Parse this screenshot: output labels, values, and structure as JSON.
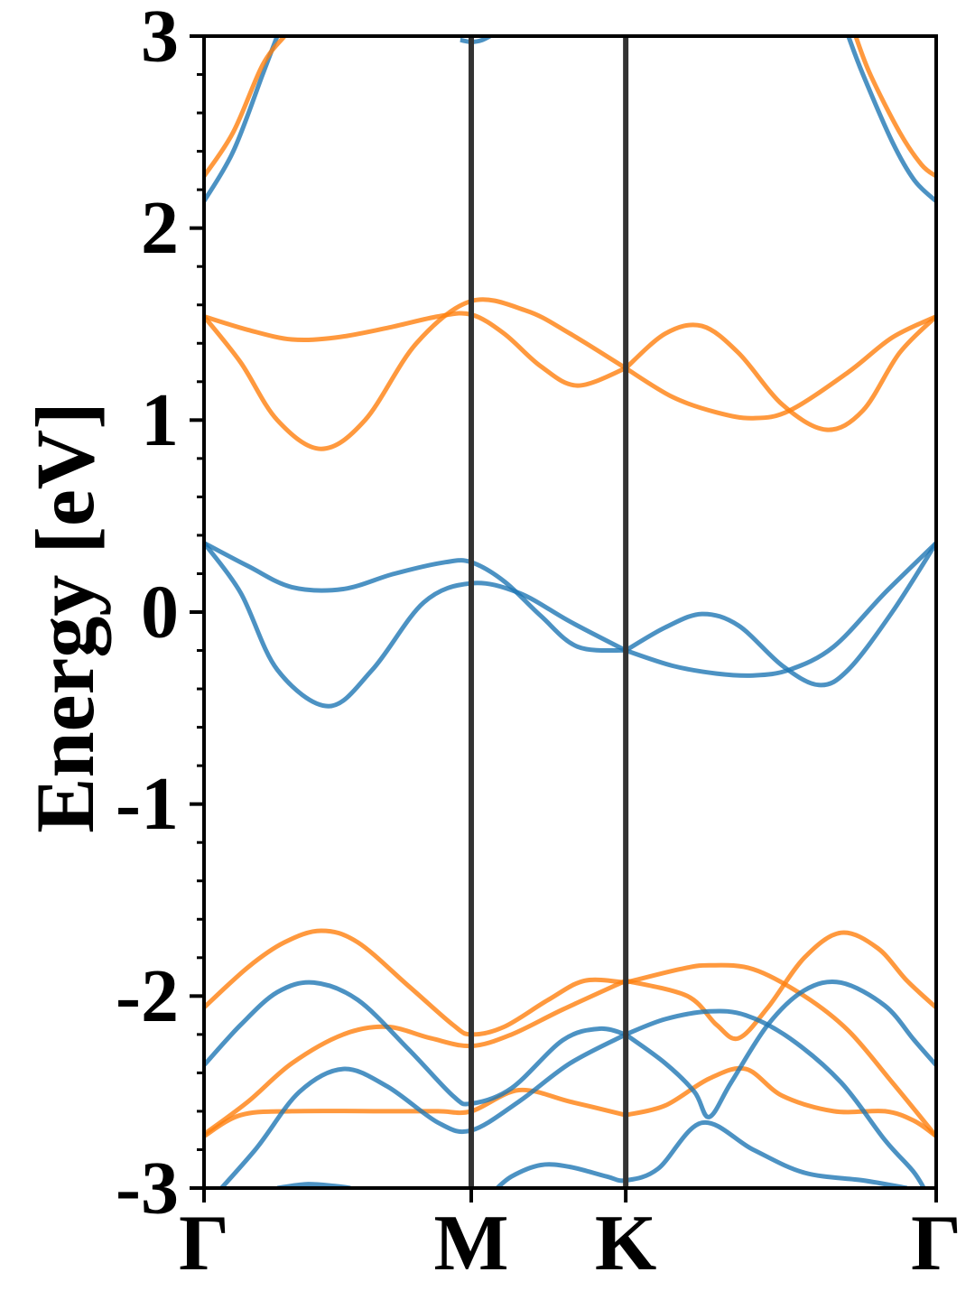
{
  "chart_data": {
    "type": "line",
    "title": "",
    "xlabel": "",
    "ylabel": "Energy [eV]",
    "ylim": [
      -3,
      3
    ],
    "xlim": [
      0,
      1
    ],
    "grid": false,
    "legend": "none",
    "y_major_ticks": [
      -3,
      -2,
      -1,
      0,
      1,
      2,
      3
    ],
    "y_tick_labels": [
      "-3",
      "-2",
      "-1",
      "0",
      "1",
      "2",
      "3"
    ],
    "y_minor_step": 0.2,
    "k_points": [
      {
        "label": "Γ",
        "x": 0.0
      },
      {
        "label": "M",
        "x": 0.365
      },
      {
        "label": "K",
        "x": 0.576
      },
      {
        "label": "Γ",
        "x": 1.0
      }
    ],
    "colors": {
      "blue": "#1f77b4",
      "orange": "#ff7f0e",
      "kline": "#333333"
    },
    "series": [
      {
        "color": "blue",
        "points": [
          [
            0,
            2.14
          ],
          [
            0.04,
            2.4
          ],
          [
            0.08,
            2.8
          ],
          [
            0.1,
            3.0
          ]
        ]
      },
      {
        "color": "blue",
        "points": [
          [
            0.35,
            2.98
          ],
          [
            0.365,
            2.97
          ],
          [
            0.38,
            2.98
          ],
          [
            0.4,
            3.02
          ]
        ]
      },
      {
        "color": "blue",
        "points": [
          [
            0.88,
            3.0
          ],
          [
            0.9,
            2.8
          ],
          [
            0.94,
            2.45
          ],
          [
            0.97,
            2.25
          ],
          [
            1.0,
            2.14
          ]
        ]
      },
      {
        "color": "orange",
        "points": [
          [
            0,
            2.27
          ],
          [
            0.04,
            2.5
          ],
          [
            0.08,
            2.85
          ],
          [
            0.11,
            3.0
          ]
        ]
      },
      {
        "color": "orange",
        "points": [
          [
            0.89,
            3.0
          ],
          [
            0.91,
            2.8
          ],
          [
            0.95,
            2.5
          ],
          [
            0.98,
            2.33
          ],
          [
            1.0,
            2.27
          ]
        ]
      },
      {
        "color": "orange",
        "points": [
          [
            0,
            1.54
          ],
          [
            0.06,
            1.47
          ],
          [
            0.12,
            1.42
          ],
          [
            0.18,
            1.43
          ],
          [
            0.25,
            1.48
          ],
          [
            0.32,
            1.54
          ],
          [
            0.365,
            1.55
          ],
          [
            0.41,
            1.45
          ],
          [
            0.46,
            1.28
          ],
          [
            0.51,
            1.18
          ],
          [
            0.576,
            1.27
          ]
        ]
      },
      {
        "color": "orange",
        "points": [
          [
            0,
            1.54
          ],
          [
            0.05,
            1.3
          ],
          [
            0.1,
            1.0
          ],
          [
            0.16,
            0.85
          ],
          [
            0.22,
            1.0
          ],
          [
            0.29,
            1.4
          ],
          [
            0.365,
            1.62
          ],
          [
            0.44,
            1.57
          ],
          [
            0.5,
            1.45
          ],
          [
            0.576,
            1.27
          ]
        ]
      },
      {
        "color": "orange",
        "points": [
          [
            0.576,
            1.27
          ],
          [
            0.63,
            1.45
          ],
          [
            0.68,
            1.49
          ],
          [
            0.73,
            1.35
          ],
          [
            0.79,
            1.08
          ],
          [
            0.85,
            0.95
          ],
          [
            0.9,
            1.05
          ],
          [
            0.95,
            1.35
          ],
          [
            1.0,
            1.54
          ]
        ]
      },
      {
        "color": "orange",
        "points": [
          [
            0.576,
            1.27
          ],
          [
            0.64,
            1.12
          ],
          [
            0.7,
            1.04
          ],
          [
            0.75,
            1.01
          ],
          [
            0.8,
            1.05
          ],
          [
            0.88,
            1.25
          ],
          [
            0.94,
            1.43
          ],
          [
            1.0,
            1.54
          ]
        ]
      },
      {
        "color": "blue",
        "points": [
          [
            0,
            0.36
          ],
          [
            0.06,
            0.24
          ],
          [
            0.12,
            0.13
          ],
          [
            0.19,
            0.12
          ],
          [
            0.26,
            0.2
          ],
          [
            0.33,
            0.26
          ],
          [
            0.365,
            0.26
          ],
          [
            0.41,
            0.16
          ],
          [
            0.46,
            -0.02
          ],
          [
            0.51,
            -0.18
          ],
          [
            0.576,
            -0.2
          ]
        ]
      },
      {
        "color": "blue",
        "points": [
          [
            0,
            0.36
          ],
          [
            0.05,
            0.1
          ],
          [
            0.1,
            -0.3
          ],
          [
            0.17,
            -0.49
          ],
          [
            0.23,
            -0.3
          ],
          [
            0.3,
            0.05
          ],
          [
            0.365,
            0.15
          ],
          [
            0.43,
            0.1
          ],
          [
            0.5,
            -0.05
          ],
          [
            0.576,
            -0.2
          ]
        ]
      },
      {
        "color": "blue",
        "points": [
          [
            0.576,
            -0.2
          ],
          [
            0.63,
            -0.08
          ],
          [
            0.68,
            -0.01
          ],
          [
            0.73,
            -0.07
          ],
          [
            0.79,
            -0.28
          ],
          [
            0.84,
            -0.38
          ],
          [
            0.88,
            -0.3
          ],
          [
            0.94,
            0.0
          ],
          [
            1.0,
            0.36
          ]
        ]
      },
      {
        "color": "blue",
        "points": [
          [
            0.576,
            -0.2
          ],
          [
            0.64,
            -0.28
          ],
          [
            0.7,
            -0.32
          ],
          [
            0.75,
            -0.33
          ],
          [
            0.8,
            -0.3
          ],
          [
            0.86,
            -0.18
          ],
          [
            0.93,
            0.1
          ],
          [
            1.0,
            0.36
          ]
        ]
      },
      {
        "color": "orange",
        "points": [
          [
            0,
            -2.06
          ],
          [
            0.06,
            -1.85
          ],
          [
            0.11,
            -1.72
          ],
          [
            0.16,
            -1.66
          ],
          [
            0.21,
            -1.72
          ],
          [
            0.28,
            -1.95
          ],
          [
            0.34,
            -2.15
          ],
          [
            0.365,
            -2.2
          ],
          [
            0.41,
            -2.16
          ],
          [
            0.47,
            -2.02
          ],
          [
            0.52,
            -1.92
          ],
          [
            0.576,
            -1.93
          ]
        ]
      },
      {
        "color": "orange",
        "points": [
          [
            0,
            -2.72
          ],
          [
            0.06,
            -2.55
          ],
          [
            0.12,
            -2.35
          ],
          [
            0.19,
            -2.2
          ],
          [
            0.25,
            -2.16
          ],
          [
            0.31,
            -2.22
          ],
          [
            0.365,
            -2.26
          ],
          [
            0.42,
            -2.2
          ],
          [
            0.49,
            -2.07
          ],
          [
            0.576,
            -1.92
          ]
        ]
      },
      {
        "color": "orange",
        "points": [
          [
            0,
            -2.73
          ],
          [
            0.05,
            -2.62
          ],
          [
            0.12,
            -2.6
          ],
          [
            0.25,
            -2.6
          ],
          [
            0.32,
            -2.6
          ],
          [
            0.365,
            -2.6
          ],
          [
            0.43,
            -2.49
          ],
          [
            0.5,
            -2.55
          ],
          [
            0.576,
            -2.62
          ]
        ]
      },
      {
        "color": "orange",
        "points": [
          [
            0.576,
            -1.93
          ],
          [
            0.65,
            -1.86
          ],
          [
            0.69,
            -1.84
          ],
          [
            0.75,
            -1.86
          ],
          [
            0.82,
            -2.0
          ],
          [
            0.88,
            -2.18
          ],
          [
            0.94,
            -2.45
          ],
          [
            1.0,
            -2.73
          ]
        ]
      },
      {
        "color": "orange",
        "points": [
          [
            0.576,
            -1.92
          ],
          [
            0.66,
            -2.0
          ],
          [
            0.7,
            -2.15
          ],
          [
            0.73,
            -2.22
          ],
          [
            0.77,
            -2.06
          ],
          [
            0.82,
            -1.8
          ],
          [
            0.87,
            -1.67
          ],
          [
            0.92,
            -1.75
          ],
          [
            0.96,
            -1.92
          ],
          [
            1.0,
            -2.06
          ]
        ]
      },
      {
        "color": "orange",
        "points": [
          [
            0.576,
            -2.62
          ],
          [
            0.63,
            -2.57
          ],
          [
            0.69,
            -2.43
          ],
          [
            0.74,
            -2.38
          ],
          [
            0.79,
            -2.52
          ],
          [
            0.86,
            -2.6
          ],
          [
            0.93,
            -2.6
          ],
          [
            0.97,
            -2.65
          ],
          [
            1.0,
            -2.73
          ]
        ]
      },
      {
        "color": "blue",
        "points": [
          [
            0,
            -2.36
          ],
          [
            0.05,
            -2.15
          ],
          [
            0.1,
            -1.98
          ],
          [
            0.15,
            -1.93
          ],
          [
            0.21,
            -2.02
          ],
          [
            0.28,
            -2.28
          ],
          [
            0.34,
            -2.52
          ],
          [
            0.365,
            -2.56
          ],
          [
            0.42,
            -2.48
          ],
          [
            0.49,
            -2.23
          ],
          [
            0.54,
            -2.17
          ],
          [
            0.576,
            -2.2
          ]
        ]
      },
      {
        "color": "blue",
        "points": [
          [
            0,
            -3.1
          ],
          [
            0.07,
            -2.8
          ],
          [
            0.13,
            -2.5
          ],
          [
            0.19,
            -2.38
          ],
          [
            0.25,
            -2.47
          ],
          [
            0.32,
            -2.66
          ],
          [
            0.365,
            -2.7
          ],
          [
            0.43,
            -2.55
          ],
          [
            0.5,
            -2.35
          ],
          [
            0.576,
            -2.2
          ]
        ]
      },
      {
        "color": "blue",
        "points": [
          [
            0.576,
            -2.2
          ],
          [
            0.63,
            -2.12
          ],
          [
            0.69,
            -2.08
          ],
          [
            0.74,
            -2.1
          ],
          [
            0.8,
            -2.22
          ],
          [
            0.87,
            -2.45
          ],
          [
            0.93,
            -2.75
          ],
          [
            0.97,
            -2.92
          ],
          [
            0.99,
            -3.05
          ]
        ]
      },
      {
        "color": "blue",
        "points": [
          [
            0.576,
            -2.2
          ],
          [
            0.63,
            -2.35
          ],
          [
            0.67,
            -2.5
          ],
          [
            0.69,
            -2.63
          ],
          [
            0.72,
            -2.45
          ],
          [
            0.77,
            -2.15
          ],
          [
            0.82,
            -1.97
          ],
          [
            0.87,
            -1.93
          ],
          [
            0.93,
            -2.05
          ],
          [
            0.97,
            -2.23
          ],
          [
            1.0,
            -2.36
          ]
        ]
      },
      {
        "color": "blue",
        "points": [
          [
            0.395,
            -3.02
          ],
          [
            0.42,
            -2.94
          ],
          [
            0.46,
            -2.88
          ],
          [
            0.5,
            -2.89
          ],
          [
            0.55,
            -2.94
          ],
          [
            0.576,
            -2.96
          ],
          [
            0.62,
            -2.9
          ],
          [
            0.68,
            -2.66
          ],
          [
            0.75,
            -2.8
          ],
          [
            0.82,
            -2.92
          ],
          [
            0.9,
            -2.96
          ],
          [
            0.96,
            -3.0
          ]
        ]
      },
      {
        "color": "blue",
        "points": [
          [
            0.1,
            -3.0
          ],
          [
            0.14,
            -2.98
          ],
          [
            0.18,
            -2.99
          ],
          [
            0.2,
            -3.0
          ]
        ]
      }
    ]
  }
}
